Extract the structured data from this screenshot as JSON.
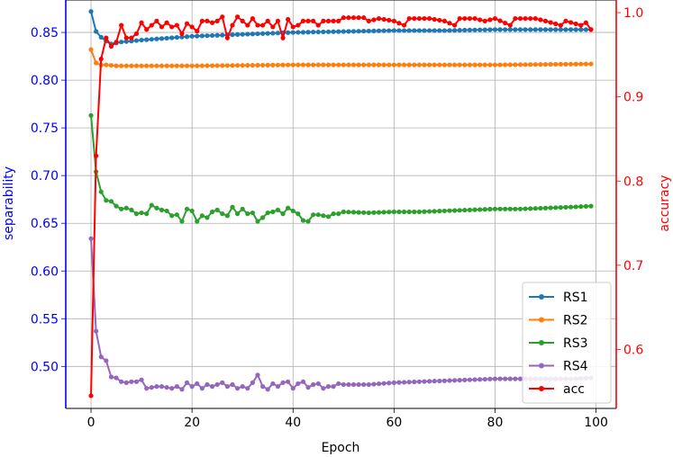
{
  "chart_data": {
    "type": "line",
    "xlabel": "Epoch",
    "ylabel_left": "separability",
    "ylabel_right": "accuracy",
    "x_ticks": [
      0,
      20,
      40,
      60,
      80,
      100
    ],
    "y_left_ticks": [
      0.5,
      0.55,
      0.6,
      0.65,
      0.7,
      0.75,
      0.8,
      0.85
    ],
    "y_right_ticks": [
      0.6,
      0.7,
      0.8,
      0.9,
      1.0
    ],
    "xlim": [
      -5,
      104
    ],
    "ylim_left": [
      0.456,
      0.884
    ],
    "ylim_right": [
      0.53,
      1.015
    ],
    "grid": true,
    "legend_position": "lower-right",
    "colors": {
      "left_axis": "#0000ff",
      "right_axis": "#ff0000",
      "grid": "#b0b0b0"
    },
    "series": [
      {
        "name": "RS1",
        "axis": "left",
        "color": "#1f77b4",
        "keypoints": [
          [
            0,
            0.872
          ],
          [
            1,
            0.851
          ],
          [
            2,
            0.845
          ],
          [
            3,
            0.841
          ],
          [
            4,
            0.838
          ],
          [
            5,
            0.839
          ],
          [
            6,
            0.84
          ],
          [
            8,
            0.841
          ],
          [
            10,
            0.842
          ],
          [
            15,
            0.844
          ],
          [
            20,
            0.846
          ],
          [
            30,
            0.848
          ],
          [
            40,
            0.85
          ],
          [
            50,
            0.851
          ],
          [
            60,
            0.852
          ],
          [
            70,
            0.852
          ],
          [
            80,
            0.853
          ],
          [
            90,
            0.853
          ],
          [
            99,
            0.853
          ]
        ]
      },
      {
        "name": "RS2",
        "axis": "left",
        "color": "#ff7f0e",
        "keypoints": [
          [
            0,
            0.832
          ],
          [
            1,
            0.818
          ],
          [
            2,
            0.816
          ],
          [
            3,
            0.816
          ],
          [
            5,
            0.815
          ],
          [
            10,
            0.815
          ],
          [
            20,
            0.815
          ],
          [
            40,
            0.816
          ],
          [
            60,
            0.816
          ],
          [
            80,
            0.816
          ],
          [
            99,
            0.817
          ]
        ]
      },
      {
        "name": "RS3",
        "axis": "left",
        "color": "#2ca02c",
        "keypoints": [
          [
            0,
            0.763
          ],
          [
            1,
            0.704
          ],
          [
            2,
            0.683
          ],
          [
            3,
            0.674
          ],
          [
            4,
            0.673
          ],
          [
            5,
            0.668
          ],
          [
            6,
            0.665
          ],
          [
            7,
            0.666
          ],
          [
            8,
            0.664
          ],
          [
            9,
            0.66
          ],
          [
            10,
            0.661
          ],
          [
            11,
            0.66
          ],
          [
            12,
            0.669
          ],
          [
            13,
            0.666
          ],
          [
            14,
            0.664
          ],
          [
            15,
            0.663
          ],
          [
            16,
            0.658
          ],
          [
            17,
            0.659
          ],
          [
            18,
            0.652
          ],
          [
            19,
            0.665
          ],
          [
            20,
            0.663
          ],
          [
            21,
            0.652
          ],
          [
            22,
            0.658
          ],
          [
            23,
            0.656
          ],
          [
            24,
            0.662
          ],
          [
            25,
            0.664
          ],
          [
            26,
            0.66
          ],
          [
            27,
            0.658
          ],
          [
            28,
            0.667
          ],
          [
            29,
            0.66
          ],
          [
            30,
            0.665
          ],
          [
            31,
            0.66
          ],
          [
            32,
            0.661
          ],
          [
            33,
            0.652
          ],
          [
            34,
            0.656
          ],
          [
            35,
            0.661
          ],
          [
            36,
            0.662
          ],
          [
            37,
            0.664
          ],
          [
            38,
            0.66
          ],
          [
            39,
            0.666
          ],
          [
            40,
            0.663
          ],
          [
            41,
            0.66
          ],
          [
            42,
            0.653
          ],
          [
            43,
            0.652
          ],
          [
            44,
            0.659
          ],
          [
            45,
            0.659
          ],
          [
            46,
            0.658
          ],
          [
            47,
            0.657
          ],
          [
            48,
            0.66
          ],
          [
            49,
            0.66
          ],
          [
            50,
            0.662
          ],
          [
            55,
            0.661
          ],
          [
            60,
            0.662
          ],
          [
            65,
            0.662
          ],
          [
            70,
            0.663
          ],
          [
            75,
            0.664
          ],
          [
            80,
            0.665
          ],
          [
            85,
            0.665
          ],
          [
            90,
            0.666
          ],
          [
            95,
            0.667
          ],
          [
            99,
            0.668
          ]
        ]
      },
      {
        "name": "RS4",
        "axis": "left",
        "color": "#9467bd",
        "keypoints": [
          [
            0,
            0.634
          ],
          [
            1,
            0.537
          ],
          [
            2,
            0.51
          ],
          [
            3,
            0.506
          ],
          [
            4,
            0.489
          ],
          [
            5,
            0.488
          ],
          [
            6,
            0.484
          ],
          [
            7,
            0.483
          ],
          [
            8,
            0.484
          ],
          [
            9,
            0.484
          ],
          [
            10,
            0.486
          ],
          [
            11,
            0.477
          ],
          [
            12,
            0.478
          ],
          [
            13,
            0.479
          ],
          [
            14,
            0.479
          ],
          [
            15,
            0.478
          ],
          [
            16,
            0.477
          ],
          [
            17,
            0.479
          ],
          [
            18,
            0.476
          ],
          [
            19,
            0.483
          ],
          [
            20,
            0.479
          ],
          [
            21,
            0.482
          ],
          [
            22,
            0.477
          ],
          [
            23,
            0.481
          ],
          [
            24,
            0.479
          ],
          [
            25,
            0.481
          ],
          [
            26,
            0.483
          ],
          [
            27,
            0.479
          ],
          [
            28,
            0.481
          ],
          [
            29,
            0.477
          ],
          [
            30,
            0.479
          ],
          [
            31,
            0.477
          ],
          [
            32,
            0.483
          ],
          [
            33,
            0.491
          ],
          [
            34,
            0.479
          ],
          [
            35,
            0.476
          ],
          [
            36,
            0.482
          ],
          [
            37,
            0.479
          ],
          [
            38,
            0.483
          ],
          [
            39,
            0.484
          ],
          [
            40,
            0.477
          ],
          [
            41,
            0.482
          ],
          [
            42,
            0.484
          ],
          [
            43,
            0.478
          ],
          [
            44,
            0.481
          ],
          [
            45,
            0.482
          ],
          [
            46,
            0.477
          ],
          [
            47,
            0.479
          ],
          [
            48,
            0.479
          ],
          [
            49,
            0.482
          ],
          [
            50,
            0.481
          ],
          [
            55,
            0.481
          ],
          [
            60,
            0.483
          ],
          [
            65,
            0.484
          ],
          [
            70,
            0.485
          ],
          [
            75,
            0.486
          ],
          [
            80,
            0.487
          ],
          [
            85,
            0.487
          ],
          [
            90,
            0.487
          ],
          [
            95,
            0.487
          ],
          [
            99,
            0.488
          ]
        ]
      },
      {
        "name": "acc",
        "axis": "right",
        "color": "#ff0000",
        "keypoints": [
          [
            0,
            0.545
          ],
          [
            1,
            0.83
          ],
          [
            2,
            0.945
          ],
          [
            3,
            0.97
          ],
          [
            4,
            0.96
          ],
          [
            5,
            0.965
          ],
          [
            6,
            0.985
          ],
          [
            7,
            0.97
          ],
          [
            8,
            0.97
          ],
          [
            9,
            0.975
          ],
          [
            10,
            0.988
          ],
          [
            11,
            0.98
          ],
          [
            12,
            0.985
          ],
          [
            13,
            0.99
          ],
          [
            14,
            0.983
          ],
          [
            15,
            0.988
          ],
          [
            16,
            0.983
          ],
          [
            17,
            0.985
          ],
          [
            18,
            0.975
          ],
          [
            19,
            0.987
          ],
          [
            20,
            0.983
          ],
          [
            21,
            0.978
          ],
          [
            22,
            0.99
          ],
          [
            23,
            0.99
          ],
          [
            24,
            0.988
          ],
          [
            25,
            0.99
          ],
          [
            26,
            0.995
          ],
          [
            27,
            0.97
          ],
          [
            28,
            0.985
          ],
          [
            29,
            0.995
          ],
          [
            30,
            0.99
          ],
          [
            31,
            0.985
          ],
          [
            32,
            0.993
          ],
          [
            33,
            0.985
          ],
          [
            34,
            0.985
          ],
          [
            35,
            0.99
          ],
          [
            36,
            0.983
          ],
          [
            37,
            0.99
          ],
          [
            38,
            0.97
          ],
          [
            39,
            0.992
          ],
          [
            40,
            0.983
          ],
          [
            41,
            0.985
          ],
          [
            42,
            0.99
          ],
          [
            43,
            0.99
          ],
          [
            44,
            0.99
          ],
          [
            45,
            0.985
          ],
          [
            46,
            0.99
          ],
          [
            47,
            0.99
          ],
          [
            48,
            0.99
          ],
          [
            49,
            0.99
          ],
          [
            50,
            0.994
          ],
          [
            52,
            0.994
          ],
          [
            54,
            0.994
          ],
          [
            55,
            0.99
          ],
          [
            57,
            0.993
          ],
          [
            60,
            0.99
          ],
          [
            62,
            0.985
          ],
          [
            63,
            0.993
          ],
          [
            67,
            0.993
          ],
          [
            70,
            0.99
          ],
          [
            72,
            0.985
          ],
          [
            73,
            0.993
          ],
          [
            76,
            0.993
          ],
          [
            78,
            0.99
          ],
          [
            80,
            0.993
          ],
          [
            83,
            0.985
          ],
          [
            84,
            0.993
          ],
          [
            88,
            0.993
          ],
          [
            90,
            0.99
          ],
          [
            93,
            0.985
          ],
          [
            94,
            0.99
          ],
          [
            97,
            0.985
          ],
          [
            98,
            0.988
          ],
          [
            99,
            0.98
          ]
        ]
      }
    ]
  }
}
